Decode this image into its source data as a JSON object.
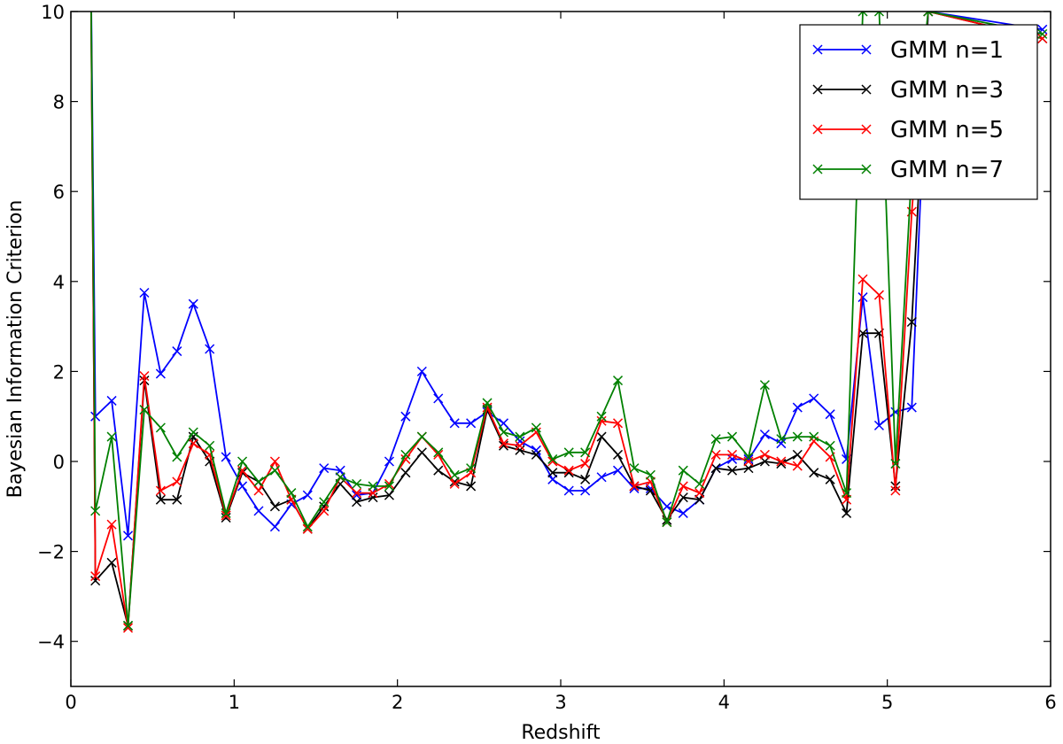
{
  "chart_data": {
    "type": "line",
    "title": "",
    "xlabel": "Redshift",
    "ylabel": "Bayesian Information Criterion",
    "xlim": [
      0,
      6
    ],
    "ylim": [
      -5,
      10
    ],
    "xticks": [
      0,
      1,
      2,
      3,
      4,
      5,
      6
    ],
    "yticks": [
      -4,
      -2,
      0,
      2,
      4,
      6,
      8,
      10
    ],
    "xtick_labels": [
      "0",
      "1",
      "2",
      "3",
      "4",
      "5",
      "6"
    ],
    "ytick_labels": [
      "−4",
      "−2",
      "0",
      "2",
      "4",
      "6",
      "8",
      "10"
    ],
    "grid": false,
    "legend_position": "top-right",
    "x": [
      0.15,
      0.25,
      0.35,
      0.45,
      0.55,
      0.65,
      0.75,
      0.85,
      0.95,
      1.05,
      1.15,
      1.25,
      1.35,
      1.45,
      1.55,
      1.65,
      1.75,
      1.85,
      1.95,
      2.05,
      2.15,
      2.25,
      2.35,
      2.45,
      2.55,
      2.65,
      2.75,
      2.85,
      2.95,
      3.05,
      3.15,
      3.25,
      3.35,
      3.45,
      3.55,
      3.65,
      3.75,
      3.85,
      3.95,
      4.05,
      4.15,
      4.25,
      4.35,
      4.45,
      4.55,
      4.65,
      4.75,
      4.85,
      4.95,
      5.05,
      5.15,
      5.25,
      5.95
    ],
    "series": [
      {
        "name": "GMM n=1",
        "color": "#0000ff",
        "values": [
          1.0,
          1.35,
          -1.65,
          3.75,
          1.95,
          2.45,
          3.5,
          2.5,
          0.1,
          -0.55,
          -1.1,
          -1.45,
          -0.95,
          -0.75,
          -0.15,
          -0.2,
          -0.75,
          -0.7,
          0.0,
          1.0,
          2.0,
          1.4,
          0.85,
          0.85,
          1.1,
          0.85,
          0.45,
          0.25,
          -0.4,
          -0.65,
          -0.65,
          -0.35,
          -0.2,
          -0.6,
          -0.6,
          -1.0,
          -1.15,
          -0.85,
          -0.15,
          0.05,
          0.05,
          0.6,
          0.4,
          1.2,
          1.4,
          1.05,
          0.05,
          3.65,
          0.8,
          1.1,
          1.2,
          10.0,
          9.6
        ]
      },
      {
        "name": "GMM n=3",
        "color": "#000000",
        "values": [
          -2.65,
          -2.25,
          -3.65,
          1.8,
          -0.85,
          -0.85,
          0.55,
          0.0,
          -1.25,
          -0.25,
          -0.45,
          -1.0,
          -0.85,
          -1.5,
          -1.0,
          -0.5,
          -0.9,
          -0.8,
          -0.75,
          -0.25,
          0.2,
          -0.2,
          -0.45,
          -0.55,
          1.15,
          0.35,
          0.25,
          0.15,
          -0.25,
          -0.25,
          -0.4,
          0.55,
          0.15,
          -0.55,
          -0.65,
          -1.3,
          -0.8,
          -0.85,
          -0.15,
          -0.2,
          -0.15,
          0.0,
          -0.05,
          0.15,
          -0.25,
          -0.4,
          -1.15,
          2.85,
          2.85,
          -0.55,
          3.1,
          10.0,
          9.4
        ]
      },
      {
        "name": "GMM n=5",
        "color": "#ff0000",
        "values": [
          -2.55,
          -1.4,
          -3.7,
          1.9,
          -0.65,
          -0.45,
          0.4,
          0.15,
          -1.2,
          -0.2,
          -0.65,
          0.0,
          -0.85,
          -1.5,
          -1.1,
          -0.35,
          -0.7,
          -0.7,
          -0.5,
          0.05,
          0.55,
          0.15,
          -0.5,
          -0.25,
          1.2,
          0.4,
          0.35,
          0.65,
          0.0,
          -0.2,
          -0.05,
          0.9,
          0.85,
          -0.55,
          -0.45,
          -1.35,
          -0.55,
          -0.7,
          0.15,
          0.15,
          0.0,
          0.15,
          0.0,
          -0.1,
          0.45,
          0.1,
          -0.85,
          4.05,
          3.7,
          -0.65,
          5.55,
          10.0,
          9.4
        ]
      },
      {
        "name": "GMM n=7",
        "color": "#008000",
        "values": [
          -1.1,
          0.55,
          -3.65,
          1.15,
          0.75,
          0.1,
          0.65,
          0.35,
          -1.15,
          0.0,
          -0.45,
          -0.2,
          -0.7,
          -1.45,
          -0.9,
          -0.35,
          -0.5,
          -0.55,
          -0.55,
          0.15,
          0.55,
          0.2,
          -0.3,
          -0.15,
          1.3,
          0.65,
          0.55,
          0.75,
          0.05,
          0.2,
          0.2,
          1.0,
          1.8,
          -0.15,
          -0.3,
          -1.35,
          -0.2,
          -0.5,
          0.5,
          0.55,
          0.1,
          1.7,
          0.5,
          0.55,
          0.55,
          0.35,
          -0.7,
          10.0,
          10.0,
          -0.05,
          6.5,
          10.0,
          9.5
        ]
      }
    ]
  }
}
